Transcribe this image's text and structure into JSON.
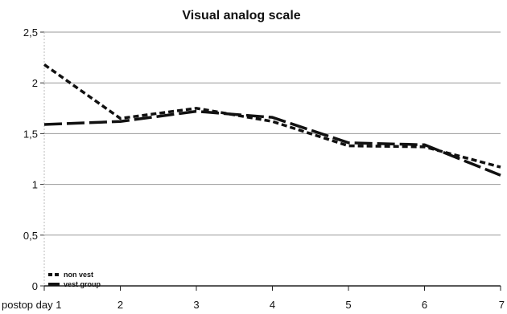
{
  "chart_data": {
    "type": "line",
    "title": "Visual analog scale",
    "xlabel": "",
    "ylabel": "",
    "categories": [
      "postop day 1",
      "2",
      "3",
      "4",
      "5",
      "6",
      "7"
    ],
    "y_ticks": [
      "0",
      "0,5",
      "1",
      "1,5",
      "2",
      "2,5"
    ],
    "ylim": [
      0,
      2.5
    ],
    "grid": "horizontal",
    "legend_position": "bottom-left",
    "series": [
      {
        "name": "non vest",
        "values": [
          2.18,
          1.65,
          1.75,
          1.62,
          1.38,
          1.37,
          1.17
        ],
        "dash": "short"
      },
      {
        "name": "vest group",
        "values": [
          1.59,
          1.62,
          1.72,
          1.66,
          1.41,
          1.39,
          1.09
        ],
        "dash": "long"
      }
    ]
  }
}
